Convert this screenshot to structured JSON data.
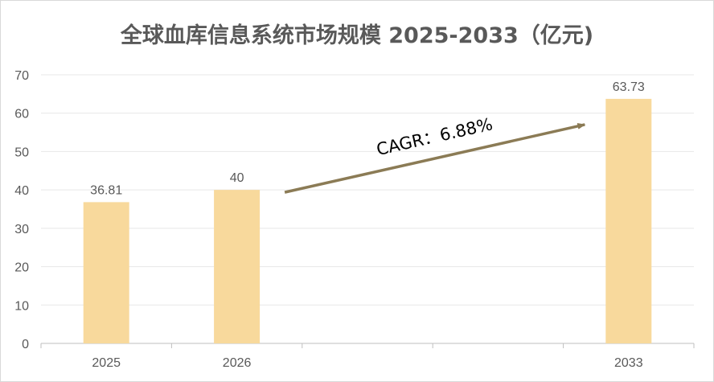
{
  "chart_data": {
    "type": "bar",
    "title": "全球血库信息系统市场规模 2025-2033（亿元)",
    "categories": [
      "2025",
      "2026",
      "",
      "",
      "2033"
    ],
    "values": [
      36.81,
      40,
      null,
      null,
      63.73
    ],
    "data_labels": [
      "36.81",
      "40",
      "",
      "",
      "63.73"
    ],
    "ylim": [
      0,
      70
    ],
    "y_ticks": [
      0,
      10,
      20,
      30,
      40,
      50,
      60,
      70
    ],
    "gridlines": true,
    "bar_color": "#f8d99c",
    "grid_color": "#e7e7e7",
    "axis_color": "#bfbfbf",
    "text_color": "#595959",
    "annotation": {
      "text": "CAGR：6.88%",
      "arrow_color": "#8b7b55",
      "from_category": "2026",
      "to_category": "2033"
    }
  }
}
